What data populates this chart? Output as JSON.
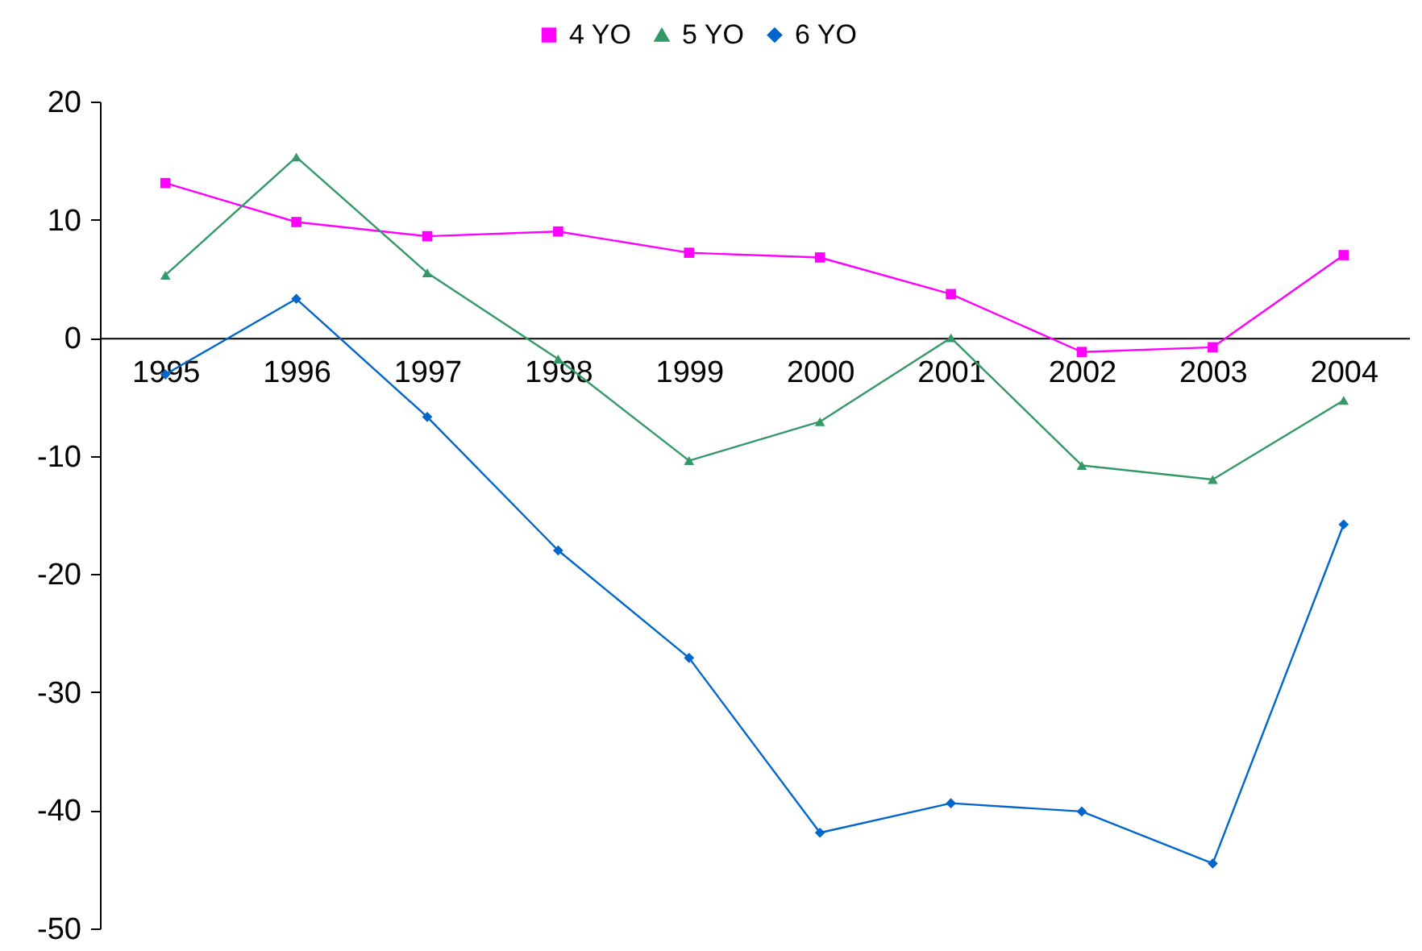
{
  "chart_data": {
    "type": "line",
    "categories": [
      "1995",
      "1996",
      "1997",
      "1998",
      "1999",
      "2000",
      "2001",
      "2002",
      "2003",
      "2004"
    ],
    "series": [
      {
        "name": "4 YO",
        "color": "#ff00ff",
        "marker": "square",
        "values": [
          13.1,
          9.8,
          8.6,
          9.0,
          7.2,
          6.8,
          3.7,
          -1.2,
          -0.8,
          7.0
        ]
      },
      {
        "name": "5 YO",
        "color": "#339966",
        "marker": "triangle",
        "values": [
          5.3,
          15.3,
          5.5,
          -1.8,
          -10.4,
          -7.1,
          0,
          -10.8,
          -12.0,
          -5.3
        ]
      },
      {
        "name": "6 YO",
        "color": "#0066cc",
        "marker": "diamond",
        "values": [
          -3.1,
          3.3,
          -6.7,
          -18.0,
          -27.1,
          -41.9,
          -39.4,
          -40.1,
          -44.5,
          -15.8
        ]
      }
    ],
    "ylim": [
      -50,
      20
    ],
    "yticks": [
      -50,
      -40,
      -30,
      -20,
      -10,
      0,
      10,
      20
    ],
    "grid": false,
    "legend": "top",
    "line_style": "solid"
  }
}
